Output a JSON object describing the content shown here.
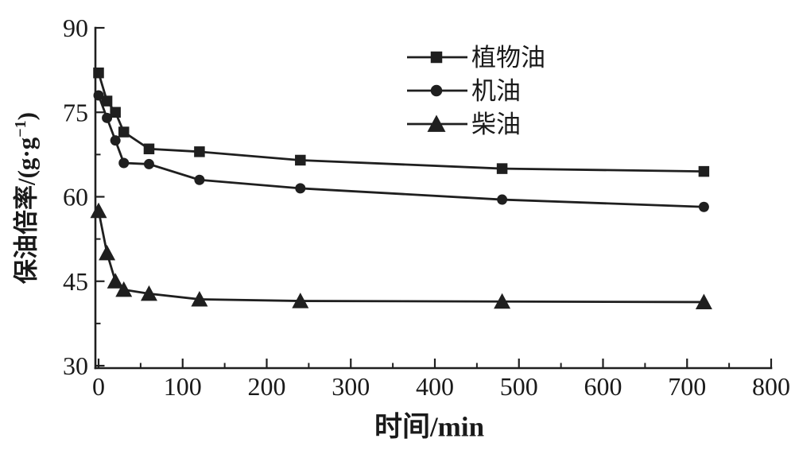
{
  "chart_data": {
    "type": "line",
    "title": "",
    "xlabel": "时间/min",
    "ylabel": "保油倍率/(g·g⁻¹)",
    "ylabel_parts": {
      "prefix": "保油倍率/(g·g",
      "sup": "−1",
      "suffix": ")"
    },
    "xlim": [
      0,
      800
    ],
    "ylim": [
      30,
      90
    ],
    "x_major_ticks": [
      0,
      100,
      200,
      300,
      400,
      500,
      600,
      700,
      800
    ],
    "x_minor_ticks": [
      50,
      150,
      250,
      350,
      450,
      550,
      650,
      750
    ],
    "y_major_ticks": [
      90,
      75,
      60,
      45,
      30
    ],
    "y_minor_ticks": [
      82.5,
      67.5,
      52.5,
      37.5
    ],
    "grid": false,
    "legend_position": "upper-center-right",
    "line_color": "#1f1f1f",
    "x": [
      0,
      10,
      20,
      30,
      60,
      120,
      240,
      480,
      720
    ],
    "series": [
      {
        "name": "植物油",
        "marker": "square",
        "values": [
          82,
          77,
          75,
          71.5,
          68.5,
          68,
          66.5,
          65,
          64.5
        ]
      },
      {
        "name": "机油",
        "marker": "circle",
        "values": [
          78,
          74,
          70,
          66,
          65.8,
          63,
          61.5,
          59.5,
          58.2
        ]
      },
      {
        "name": "柴油",
        "marker": "triangle",
        "values": [
          57.5,
          50,
          45,
          43.5,
          42.8,
          41.8,
          41.5,
          41.4,
          41.3
        ]
      }
    ]
  }
}
